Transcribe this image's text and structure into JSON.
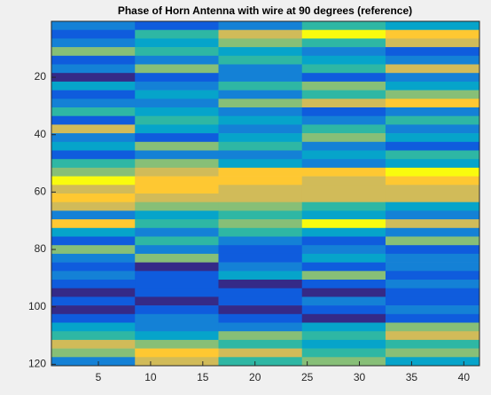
{
  "chart_data": {
    "type": "heatmap",
    "title": "Phase of Horn Antenna with wire at 90 degrees (reference)",
    "xlim": [
      0.5,
      41.5
    ],
    "ylim": [
      0.5,
      120.5
    ],
    "y_reversed": true,
    "xticks": [
      5,
      10,
      15,
      20,
      25,
      30,
      35,
      40
    ],
    "yticks": [
      20,
      40,
      60,
      80,
      100,
      120
    ],
    "colorscale": [
      "#352a87",
      "#0f5cdd",
      "#1481d6",
      "#06a4ca",
      "#2eb7a4",
      "#87bf77",
      "#d1bb59",
      "#fec832",
      "#f9fb0e"
    ],
    "x_edges": [
      0.5,
      8.5,
      16.5,
      24.5,
      32.5,
      41.5
    ],
    "y_edges": [
      0.5,
      3.5,
      6.5,
      9.5,
      12.5,
      15.5,
      18.5,
      21.5,
      24.5,
      27.5,
      30.5,
      33.5,
      36.5,
      39.5,
      42.5,
      45.5,
      48.5,
      51.5,
      54.5,
      57.5,
      60.5,
      63.5,
      66.5,
      69.5,
      72.5,
      75.5,
      78.5,
      81.5,
      84.5,
      87.5,
      90.5,
      93.5,
      96.5,
      99.5,
      102.5,
      105.5,
      108.5,
      111.5,
      114.5,
      117.5,
      120.5
    ],
    "z": [
      [
        0.3,
        0.2,
        0.3,
        0.5,
        0.4
      ],
      [
        0.2,
        0.5,
        0.7,
        0.9,
        0.8
      ],
      [
        0.3,
        0.4,
        0.6,
        0.5,
        0.7
      ],
      [
        0.6,
        0.5,
        0.4,
        0.3,
        0.2
      ],
      [
        0.2,
        0.3,
        0.5,
        0.4,
        0.3
      ],
      [
        0.3,
        0.6,
        0.3,
        0.5,
        0.7
      ],
      [
        0.1,
        0.2,
        0.3,
        0.2,
        0.3
      ],
      [
        0.4,
        0.3,
        0.5,
        0.6,
        0.4
      ],
      [
        0.2,
        0.4,
        0.3,
        0.5,
        0.6
      ],
      [
        0.3,
        0.3,
        0.6,
        0.7,
        0.8
      ],
      [
        0.5,
        0.4,
        0.3,
        0.2,
        0.3
      ],
      [
        0.2,
        0.5,
        0.4,
        0.3,
        0.5
      ],
      [
        0.7,
        0.4,
        0.3,
        0.5,
        0.3
      ],
      [
        0.3,
        0.2,
        0.4,
        0.6,
        0.4
      ],
      [
        0.4,
        0.6,
        0.5,
        0.3,
        0.2
      ],
      [
        0.2,
        0.3,
        0.3,
        0.4,
        0.5
      ],
      [
        0.5,
        0.6,
        0.4,
        0.3,
        0.4
      ],
      [
        0.6,
        0.7,
        0.8,
        0.8,
        0.9
      ],
      [
        0.9,
        0.8,
        0.8,
        0.7,
        0.8
      ],
      [
        0.7,
        0.8,
        0.7,
        0.7,
        0.7
      ],
      [
        0.8,
        0.7,
        0.7,
        0.7,
        0.7
      ],
      [
        0.7,
        0.6,
        0.6,
        0.5,
        0.4
      ],
      [
        0.3,
        0.4,
        0.5,
        0.4,
        0.3
      ],
      [
        0.8,
        0.5,
        0.6,
        0.9,
        0.7
      ],
      [
        0.4,
        0.3,
        0.5,
        0.4,
        0.3
      ],
      [
        0.2,
        0.5,
        0.3,
        0.2,
        0.6
      ],
      [
        0.6,
        0.3,
        0.2,
        0.3,
        0.2
      ],
      [
        0.3,
        0.6,
        0.2,
        0.4,
        0.3
      ],
      [
        0.2,
        0.1,
        0.3,
        0.2,
        0.3
      ],
      [
        0.3,
        0.2,
        0.4,
        0.6,
        0.2
      ],
      [
        0.2,
        0.2,
        0.1,
        0.2,
        0.3
      ],
      [
        0.1,
        0.2,
        0.2,
        0.1,
        0.2
      ],
      [
        0.2,
        0.1,
        0.2,
        0.3,
        0.2
      ],
      [
        0.1,
        0.2,
        0.1,
        0.2,
        0.3
      ],
      [
        0.2,
        0.3,
        0.2,
        0.1,
        0.2
      ],
      [
        0.4,
        0.3,
        0.3,
        0.4,
        0.6
      ],
      [
        0.5,
        0.4,
        0.6,
        0.5,
        0.7
      ],
      [
        0.7,
        0.6,
        0.5,
        0.4,
        0.5
      ],
      [
        0.6,
        0.8,
        0.7,
        0.5,
        0.6
      ],
      [
        0.3,
        0.7,
        0.5,
        0.6,
        0.4
      ]
    ]
  }
}
